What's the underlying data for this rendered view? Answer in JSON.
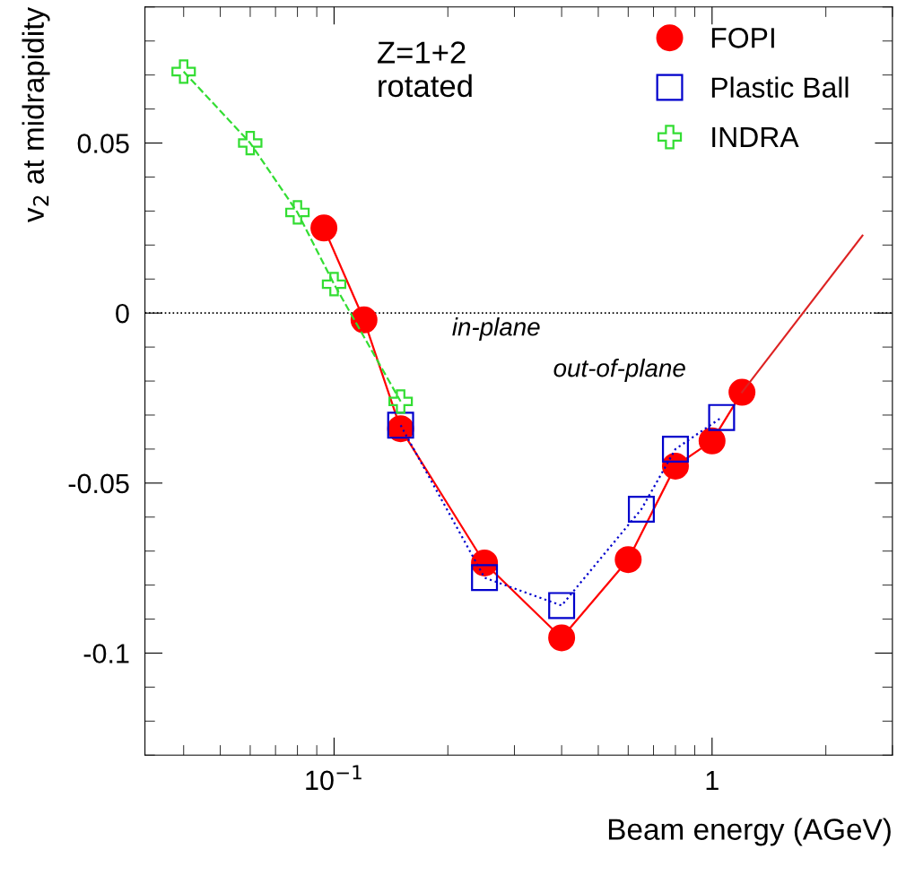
{
  "chart_data": {
    "type": "line",
    "xlabel": "Beam energy (AGeV)",
    "ylabel": "v$_{2}$ at midrapidity",
    "log": "x",
    "xlim": [
      0.0316,
      3
    ],
    "ylim": [
      -0.13,
      0.09
    ],
    "xticks": [
      {
        "value": 0.1,
        "label": "10$^{−1}$"
      },
      1
    ],
    "yticks": [
      {
        "value": -0.1,
        "label": "-0.1"
      },
      {
        "value": -0.05,
        "label": "-0.05"
      },
      0,
      0.05
    ],
    "grid": false,
    "legend": "top right",
    "series": [
      {
        "name": "FOPI",
        "color": "#ff0000",
        "marker": "circle",
        "line_style": "solid",
        "x": [
          0.094,
          0.12,
          0.15,
          0.25,
          0.4,
          0.6,
          0.8,
          1.0,
          1.2
        ],
        "values": [
          0.025,
          -0.002,
          -0.034,
          -0.0735,
          -0.0955,
          -0.0725,
          -0.045,
          -0.0376,
          -0.0233
        ]
      },
      {
        "name": "Plastic Ball",
        "color": "#0000cc",
        "marker": "square",
        "line_style": "dotted",
        "x": [
          0.15,
          0.25,
          0.4,
          0.65,
          0.8,
          1.06
        ],
        "values": [
          -0.033,
          -0.0778,
          -0.086,
          -0.0577,
          -0.04,
          -0.0307
        ]
      },
      {
        "name": "INDRA",
        "color": "#33dd33",
        "marker": "cross",
        "line_style": "dashed",
        "x": [
          0.04,
          0.06,
          0.08,
          0.1,
          0.15
        ],
        "values": [
          0.071,
          0.05,
          0.0296,
          0.0085,
          -0.026
        ]
      },
      {
        "color": "#dd2222",
        "marker": "none",
        "line_style": "solid",
        "x": [
          1.2,
          2.5
        ],
        "values": [
          -0.0233,
          0.0228
        ]
      }
    ],
    "ref_lines": [
      {
        "axis": "y",
        "value": 0,
        "color": "#000000",
        "line_style": "dotted"
      }
    ],
    "annotations": [
      "Z=1+2\nrotated",
      "in-plane",
      "out-of-plane"
    ]
  }
}
